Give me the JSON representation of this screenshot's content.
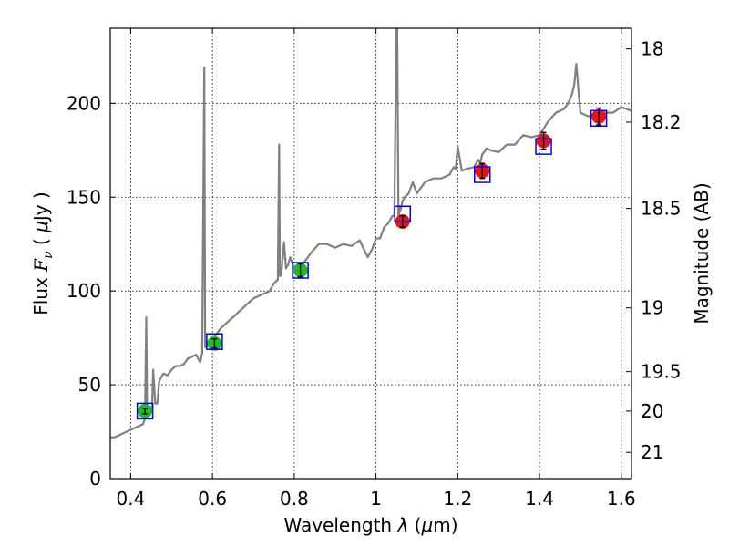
{
  "chart_data": {
    "type": "scatter",
    "x_axis": {
      "label_parts": [
        "Wavelength  ",
        "λ",
        " (",
        "μ",
        "m)"
      ],
      "range": [
        0.35,
        1.625
      ],
      "ticks": [
        0.4,
        0.6,
        0.8,
        1.0,
        1.2,
        1.4,
        1.6
      ],
      "tick_labels": [
        "0.4",
        "0.6",
        "0.8",
        "1",
        "1.2",
        "1.4",
        "1.6"
      ]
    },
    "y_axis": {
      "label_parts": [
        "Flux  ",
        "F",
        "ν",
        "  ( ",
        "μ",
        "Jy )"
      ],
      "range": [
        0,
        240
      ],
      "ticks": [
        0,
        50,
        100,
        150,
        200
      ],
      "tick_labels": [
        "0",
        "50",
        "100",
        "150",
        "200"
      ]
    },
    "y2_axis": {
      "label": "Magnitude (AB)",
      "ticks": [
        {
          "label": "18",
          "flux": 229
        },
        {
          "label": "18.2",
          "flux": 190
        },
        {
          "label": "18.5",
          "flux": 144
        },
        {
          "label": "19",
          "flux": 91
        },
        {
          "label": "19.5",
          "flux": 57
        },
        {
          "label": "20",
          "flux": 36
        },
        {
          "label": "21",
          "flux": 14
        }
      ]
    },
    "grid": true,
    "colors": {
      "spectrum": "#808080",
      "optical_points": "#22bb22",
      "nir_points": "#ee1111",
      "model_boxes": "#0000ee",
      "error_bars": "#000000"
    },
    "spectrum": {
      "x": [
        0.35,
        0.36,
        0.37,
        0.38,
        0.39,
        0.4,
        0.41,
        0.42,
        0.43,
        0.435,
        0.438,
        0.44,
        0.443,
        0.45,
        0.452,
        0.455,
        0.46,
        0.465,
        0.47,
        0.48,
        0.49,
        0.5,
        0.51,
        0.52,
        0.53,
        0.54,
        0.55,
        0.56,
        0.57,
        0.575,
        0.58,
        0.582,
        0.585,
        0.59,
        0.6,
        0.62,
        0.64,
        0.66,
        0.68,
        0.7,
        0.72,
        0.74,
        0.75,
        0.76,
        0.763,
        0.765,
        0.768,
        0.775,
        0.78,
        0.785,
        0.79,
        0.8,
        0.82,
        0.84,
        0.86,
        0.88,
        0.9,
        0.92,
        0.94,
        0.96,
        0.98,
        0.99,
        1.0,
        1.01,
        1.02,
        1.03,
        1.04,
        1.045,
        1.05,
        1.052,
        1.055,
        1.058,
        1.06,
        1.065,
        1.07,
        1.08,
        1.09,
        1.1,
        1.12,
        1.14,
        1.16,
        1.18,
        1.19,
        1.195,
        1.2,
        1.21,
        1.22,
        1.24,
        1.25,
        1.255,
        1.26,
        1.265,
        1.27,
        1.28,
        1.3,
        1.32,
        1.34,
        1.36,
        1.38,
        1.4,
        1.42,
        1.44,
        1.46,
        1.47,
        1.48,
        1.485,
        1.49,
        1.5,
        1.52,
        1.54,
        1.56,
        1.58,
        1.6,
        1.625
      ],
      "y": [
        22,
        22,
        23,
        24,
        25,
        26,
        27,
        28,
        29,
        32,
        86,
        36,
        37,
        38,
        36,
        58,
        40,
        40,
        52,
        56,
        55,
        58,
        60,
        60,
        61,
        64,
        65,
        66,
        62,
        67,
        219,
        70,
        70,
        73,
        74,
        80,
        84,
        88,
        92,
        96,
        98,
        100,
        104,
        106,
        178,
        108,
        108,
        126,
        112,
        114,
        118,
        112,
        114,
        120,
        125,
        125,
        123,
        125,
        124,
        127,
        118,
        122,
        128,
        128,
        134,
        136,
        140,
        140,
        240,
        240,
        138,
        145,
        143,
        148,
        150,
        152,
        158,
        152,
        158,
        160,
        160,
        162,
        166,
        165,
        177,
        164,
        165,
        166,
        170,
        168,
        173,
        174,
        176,
        175,
        174,
        178,
        178,
        183,
        182,
        183,
        190,
        195,
        197,
        200,
        205,
        210,
        221,
        195,
        193,
        195,
        195,
        195,
        198,
        196
      ]
    },
    "series": [
      {
        "x": [
          0.435,
          0.605,
          0.815
        ],
        "y": [
          36,
          72,
          111
        ],
        "yerr": [
          1.5,
          2.5,
          3.5
        ],
        "color_key": "optical_points"
      },
      {
        "x": [
          1.065,
          1.26,
          1.41,
          1.545
        ],
        "y": [
          137,
          164,
          180,
          193
        ],
        "yerr": [
          3,
          4,
          4.5,
          4.5
        ],
        "color_key": "nir_points"
      },
      {
        "x": [
          0.435,
          0.605,
          0.815,
          1.065,
          1.26,
          1.41,
          1.545
        ],
        "y": [
          36,
          73,
          111,
          141,
          162,
          177,
          192
        ],
        "marker": "open-square",
        "color_key": "model_boxes"
      }
    ]
  }
}
